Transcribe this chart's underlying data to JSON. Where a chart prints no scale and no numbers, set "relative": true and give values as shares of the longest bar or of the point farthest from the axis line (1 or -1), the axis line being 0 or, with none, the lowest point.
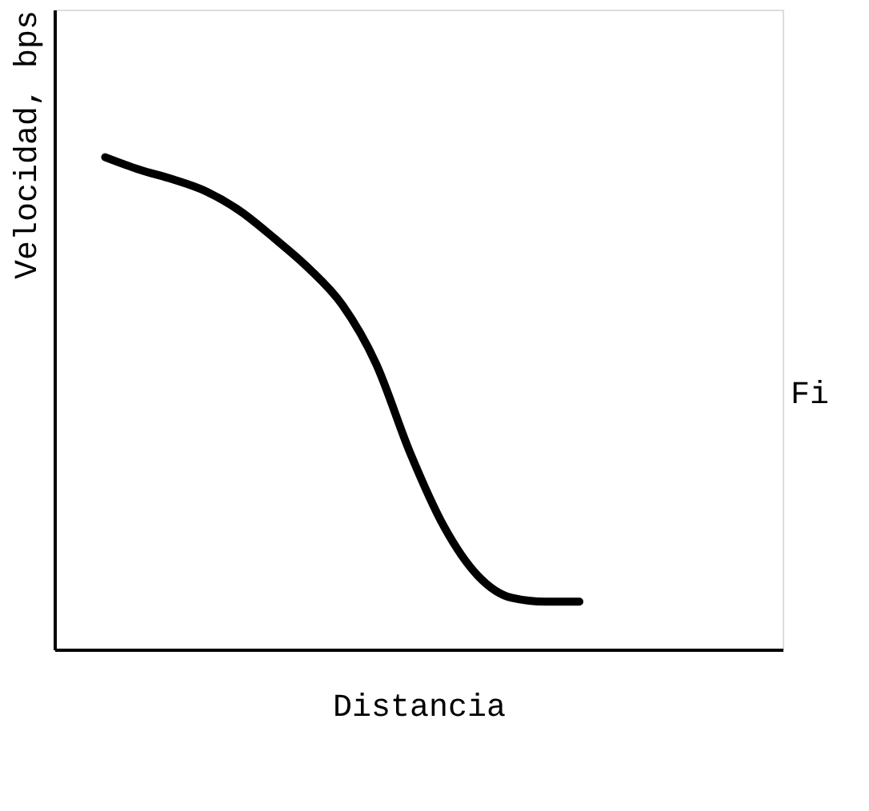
{
  "chart_data": {
    "type": "line",
    "relative": true,
    "xlabel": "Distancia",
    "ylabel": "Velocidad, bps",
    "annotations": [
      "Fi"
    ],
    "color": "#000000",
    "categories": [
      null,
      null,
      null,
      null,
      null,
      null,
      null,
      null,
      null,
      null,
      null,
      null,
      null,
      null,
      null
    ],
    "values": [
      1.0,
      0.975,
      0.955,
      0.93,
      0.89,
      0.835,
      0.775,
      0.7,
      0.58,
      0.4,
      0.25,
      0.15,
      0.105,
      0.097,
      0.097
    ]
  }
}
